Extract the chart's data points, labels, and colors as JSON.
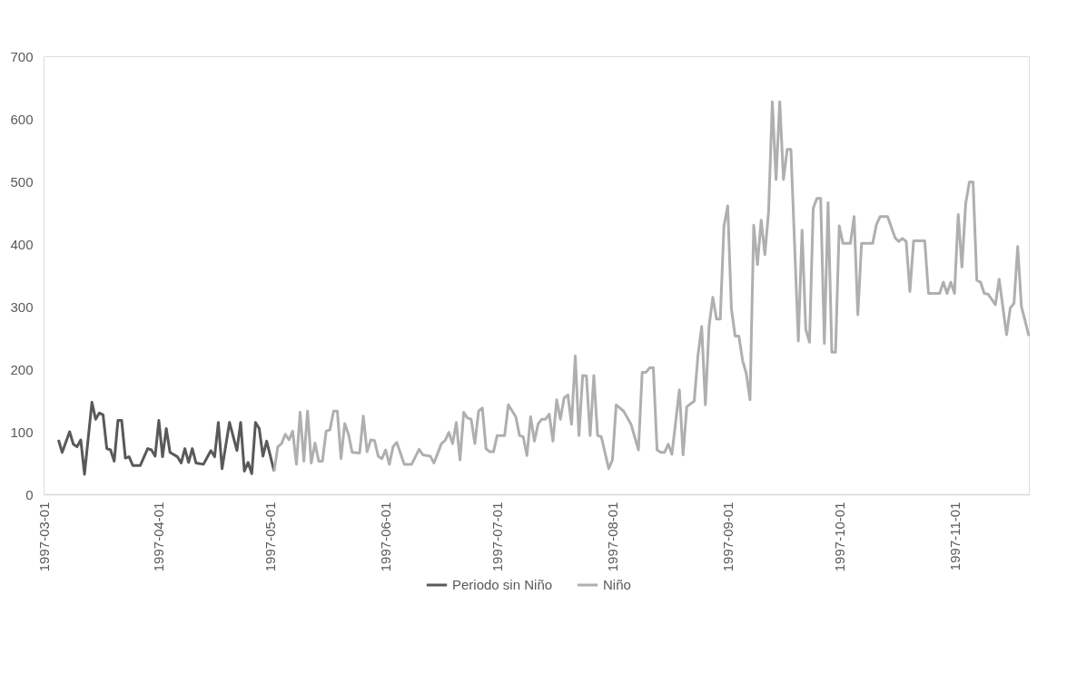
{
  "chart_data": {
    "type": "line",
    "series": [
      {
        "name": "Periodo sin Niño",
        "color": "#595959",
        "x": [
          "1997-03-05",
          "1997-03-06",
          "1997-03-08",
          "1997-03-09",
          "1997-03-10",
          "1997-03-11",
          "1997-03-12",
          "1997-03-14",
          "1997-03-15",
          "1997-03-16",
          "1997-03-17",
          "1997-03-18",
          "1997-03-19",
          "1997-03-20",
          "1997-03-21",
          "1997-03-22",
          "1997-03-23",
          "1997-03-24",
          "1997-03-25",
          "1997-03-27",
          "1997-03-29",
          "1997-03-30",
          "1997-03-31",
          "1997-04-01",
          "1997-04-02",
          "1997-04-03",
          "1997-04-04",
          "1997-04-06",
          "1997-04-07",
          "1997-04-08",
          "1997-04-09",
          "1997-04-10",
          "1997-04-11",
          "1997-04-13",
          "1997-04-15",
          "1997-04-16",
          "1997-04-17",
          "1997-04-18",
          "1997-04-20",
          "1997-04-22",
          "1997-04-23",
          "1997-04-24",
          "1997-04-25",
          "1997-04-26",
          "1997-04-27",
          "1997-04-28",
          "1997-04-29",
          "1997-04-30",
          "1997-05-02"
        ],
        "values": [
          87,
          67,
          100,
          80,
          76,
          87,
          32,
          147,
          120,
          130,
          127,
          73,
          71,
          53,
          118,
          118,
          58,
          60,
          46,
          46,
          73,
          71,
          61,
          118,
          60,
          105,
          67,
          60,
          50,
          73,
          51,
          73,
          50,
          48,
          70,
          60,
          115,
          41,
          115,
          70,
          115,
          37,
          51,
          33,
          115,
          105,
          61,
          85,
          37
        ]
      },
      {
        "name": "Niño",
        "color": "#afafaf",
        "x": [
          "1997-05-02",
          "1997-05-03",
          "1997-05-04",
          "1997-05-05",
          "1997-05-06",
          "1997-05-07",
          "1997-05-08",
          "1997-05-09",
          "1997-05-10",
          "1997-05-11",
          "1997-05-12",
          "1997-05-13",
          "1997-05-14",
          "1997-05-15",
          "1997-05-16",
          "1997-05-17",
          "1997-05-18",
          "1997-05-19",
          "1997-05-20",
          "1997-05-21",
          "1997-05-22",
          "1997-05-23",
          "1997-05-25",
          "1997-05-26",
          "1997-05-27",
          "1997-05-28",
          "1997-05-29",
          "1997-05-30",
          "1997-05-31",
          "1997-06-01",
          "1997-06-02",
          "1997-06-03",
          "1997-06-04",
          "1997-06-06",
          "1997-06-08",
          "1997-06-10",
          "1997-06-11",
          "1997-06-13",
          "1997-06-14",
          "1997-06-16",
          "1997-06-17",
          "1997-06-18",
          "1997-06-19",
          "1997-06-20",
          "1997-06-21",
          "1997-06-22",
          "1997-06-23",
          "1997-06-24",
          "1997-06-25",
          "1997-06-26",
          "1997-06-27",
          "1997-06-28",
          "1997-06-29",
          "1997-06-30",
          "1997-07-01",
          "1997-07-03",
          "1997-07-04",
          "1997-07-06",
          "1997-07-07",
          "1997-07-08",
          "1997-07-09",
          "1997-07-10",
          "1997-07-11",
          "1997-07-12",
          "1997-07-13",
          "1997-07-14",
          "1997-07-15",
          "1997-07-16",
          "1997-07-17",
          "1997-07-18",
          "1997-07-19",
          "1997-07-20",
          "1997-07-21",
          "1997-07-22",
          "1997-07-23",
          "1997-07-24",
          "1997-07-25",
          "1997-07-26",
          "1997-07-27",
          "1997-07-28",
          "1997-07-29",
          "1997-07-31",
          "1997-08-01",
          "1997-08-02",
          "1997-08-03",
          "1997-08-04",
          "1997-08-06",
          "1997-08-08",
          "1997-08-09",
          "1997-08-10",
          "1997-08-11",
          "1997-08-12",
          "1997-08-13",
          "1997-08-14",
          "1997-08-15",
          "1997-08-16",
          "1997-08-17",
          "1997-08-19",
          "1997-08-20",
          "1997-08-21",
          "1997-08-23",
          "1997-08-24",
          "1997-08-25",
          "1997-08-26",
          "1997-08-27",
          "1997-08-28",
          "1997-08-29",
          "1997-08-30",
          "1997-08-31",
          "1997-09-01",
          "1997-09-02",
          "1997-09-03",
          "1997-09-04",
          "1997-09-05",
          "1997-09-06",
          "1997-09-07",
          "1997-09-08",
          "1997-09-09",
          "1997-09-10",
          "1997-09-11",
          "1997-09-12",
          "1997-09-13",
          "1997-09-14",
          "1997-09-15",
          "1997-09-16",
          "1997-09-17",
          "1997-09-18",
          "1997-09-20",
          "1997-09-21",
          "1997-09-22",
          "1997-09-23",
          "1997-09-24",
          "1997-09-25",
          "1997-09-26",
          "1997-09-27",
          "1997-09-28",
          "1997-09-29",
          "1997-09-30",
          "1997-10-01",
          "1997-10-02",
          "1997-10-04",
          "1997-10-05",
          "1997-10-06",
          "1997-10-07",
          "1997-10-10",
          "1997-10-11",
          "1997-10-12",
          "1997-10-14",
          "1997-10-16",
          "1997-10-17",
          "1997-10-18",
          "1997-10-19",
          "1997-10-20",
          "1997-10-21",
          "1997-10-24",
          "1997-10-25",
          "1997-10-28",
          "1997-10-29",
          "1997-10-30",
          "1997-10-31",
          "1997-11-01",
          "1997-11-02",
          "1997-11-03",
          "1997-11-04",
          "1997-11-05",
          "1997-11-06",
          "1997-11-07",
          "1997-11-08",
          "1997-11-09",
          "1997-11-10",
          "1997-11-12",
          "1997-11-13",
          "1997-11-15",
          "1997-11-16",
          "1997-11-17",
          "1997-11-18",
          "1997-11-19",
          "1997-11-20",
          "1997-11-21"
        ],
        "values": [
          37,
          76,
          81,
          96,
          87,
          101,
          48,
          131,
          53,
          133,
          50,
          82,
          53,
          53,
          101,
          103,
          133,
          133,
          57,
          113,
          96,
          67,
          66,
          125,
          68,
          87,
          86,
          61,
          57,
          71,
          48,
          76,
          83,
          48,
          48,
          72,
          63,
          61,
          50,
          81,
          86,
          99,
          81,
          115,
          55,
          131,
          122,
          120,
          81,
          133,
          138,
          73,
          68,
          68,
          94,
          94,
          143,
          124,
          94,
          92,
          62,
          124,
          85,
          112,
          120,
          120,
          128,
          85,
          151,
          120,
          154,
          159,
          112,
          221,
          94,
          190,
          189,
          94,
          190,
          94,
          92,
          41,
          55,
          143,
          138,
          133,
          112,
          71,
          195,
          195,
          202,
          202,
          71,
          67,
          67,
          80,
          64,
          167,
          63,
          140,
          149,
          222,
          268,
          143,
          269,
          315,
          280,
          280,
          429,
          461,
          296,
          253,
          253,
          214,
          193,
          151,
          430,
          367,
          438,
          383,
          452,
          627,
          503,
          627,
          503,
          551,
          551,
          245,
          422,
          264,
          243,
          457,
          473,
          473,
          241,
          466,
          227,
          227,
          429,
          401,
          401,
          444,
          287,
          401,
          401,
          431,
          444,
          444,
          410,
          404,
          409,
          404,
          324,
          405,
          405,
          321,
          321,
          339,
          321,
          339,
          321,
          447,
          363,
          464,
          499,
          499,
          342,
          339,
          321,
          320,
          303,
          344,
          255,
          298,
          305,
          396,
          300,
          277,
          253
        ]
      }
    ],
    "xlim": [
      "1997-03-01",
      "1997-11-21"
    ],
    "xticks": [
      "1997-03-01",
      "1997-04-01",
      "1997-05-01",
      "1997-06-01",
      "1997-07-01",
      "1997-08-01",
      "1997-09-01",
      "1997-10-01",
      "1997-11-01"
    ],
    "ylim": [
      0,
      700
    ],
    "yticks": [
      0,
      100,
      200,
      300,
      400,
      500,
      600,
      700
    ],
    "grid": false,
    "legend": "bottom",
    "marker": "none",
    "line_style": "solid"
  }
}
